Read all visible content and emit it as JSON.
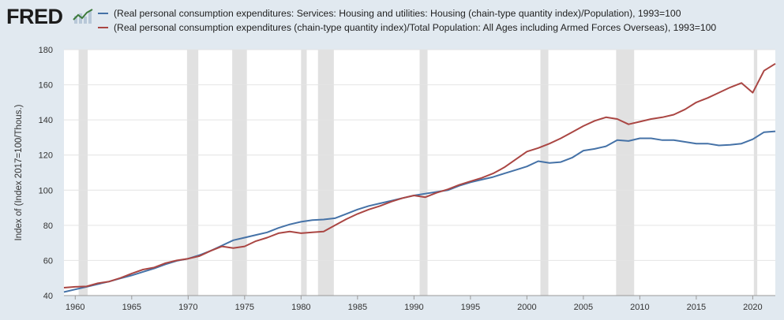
{
  "header": {
    "logo_text": "FRED",
    "logo_icon": "fred-chart-icon"
  },
  "colors": {
    "background": "#e1e9f0",
    "plot_background": "#ffffff",
    "recession": "#e1e1e1",
    "series1": "#4572a7",
    "series2": "#aa4643",
    "grid": "#e4e4e4"
  },
  "chart_data": {
    "type": "line",
    "ylabel": "Index of (Index 2017=100/Thous.)",
    "xlim": [
      1959,
      2022
    ],
    "ylim": [
      40,
      180
    ],
    "x_ticks": [
      "1960",
      "1965",
      "1970",
      "1975",
      "1980",
      "1985",
      "1990",
      "1995",
      "2000",
      "2005",
      "2010",
      "2015",
      "2020"
    ],
    "y_ticks": [
      "40",
      "60",
      "80",
      "100",
      "120",
      "140",
      "160",
      "180"
    ],
    "grid": true,
    "legend_position": "top",
    "recessions": [
      [
        1960.3,
        1961.1
      ],
      [
        1969.9,
        1970.9
      ],
      [
        1973.9,
        1975.2
      ],
      [
        1980.0,
        1980.5
      ],
      [
        1981.5,
        1982.9
      ],
      [
        1990.5,
        1991.2
      ],
      [
        2001.2,
        2001.9
      ],
      [
        2007.9,
        2009.5
      ],
      [
        2020.1,
        2020.4
      ]
    ],
    "series": [
      {
        "name": "(Real personal consumption expenditures: Services: Housing and utilities: Housing (chain-type quantity index)/Population), 1993=100",
        "color": "#4572a7",
        "x": [
          1959,
          1960,
          1961,
          1962,
          1963,
          1964,
          1965,
          1966,
          1967,
          1968,
          1969,
          1970,
          1971,
          1972,
          1973,
          1974,
          1975,
          1976,
          1977,
          1978,
          1979,
          1980,
          1981,
          1982,
          1983,
          1984,
          1985,
          1986,
          1987,
          1988,
          1989,
          1990,
          1991,
          1992,
          1993,
          1994,
          1995,
          1996,
          1997,
          1998,
          1999,
          2000,
          2001,
          2002,
          2003,
          2004,
          2005,
          2006,
          2007,
          2008,
          2009,
          2010,
          2011,
          2012,
          2013,
          2014,
          2015,
          2016,
          2017,
          2018,
          2019,
          2020,
          2021,
          2022
        ],
        "y": [
          42,
          43.5,
          45,
          46.5,
          48,
          49.8,
          51.5,
          53.5,
          55.5,
          57.8,
          59.8,
          61,
          63,
          65.5,
          68.5,
          71.5,
          73,
          74.5,
          76,
          78.5,
          80.5,
          82,
          83,
          83.3,
          84,
          86.5,
          89,
          91,
          92.5,
          94,
          95.5,
          97,
          98,
          99,
          100,
          102.5,
          104.5,
          106,
          107.5,
          109.5,
          111.5,
          113.5,
          116.5,
          115.5,
          116,
          118.5,
          122.5,
          123.5,
          125,
          128.5,
          128,
          129.5,
          129.5,
          128.5,
          128.5,
          127.5,
          126.5,
          126.5,
          125.5,
          125.8,
          126.5,
          129,
          133,
          133.5
        ]
      },
      {
        "name": "(Real personal consumption expenditures (chain-type quantity index)/Total Population: All Ages including Armed Forces Overseas), 1993=100",
        "color": "#aa4643",
        "x": [
          1959,
          1960,
          1961,
          1962,
          1963,
          1964,
          1965,
          1966,
          1967,
          1968,
          1969,
          1970,
          1971,
          1972,
          1973,
          1974,
          1975,
          1976,
          1977,
          1978,
          1979,
          1980,
          1981,
          1982,
          1983,
          1984,
          1985,
          1986,
          1987,
          1988,
          1989,
          1990,
          1991,
          1992,
          1993,
          1994,
          1995,
          1996,
          1997,
          1998,
          1999,
          2000,
          2001,
          2002,
          2003,
          2004,
          2005,
          2006,
          2007,
          2008,
          2009,
          2010,
          2011,
          2012,
          2013,
          2014,
          2015,
          2016,
          2017,
          2018,
          2019,
          2020,
          2021,
          2022
        ],
        "y": [
          44.5,
          45,
          45.2,
          47,
          48,
          50,
          52.5,
          54.8,
          56,
          58.5,
          60,
          61,
          62.5,
          65.5,
          68,
          67,
          68,
          71,
          73,
          75.5,
          76.5,
          75.5,
          76,
          76.5,
          80,
          83.5,
          86.5,
          89,
          91,
          93.5,
          95.5,
          97,
          96,
          98.5,
          100.5,
          103,
          105,
          107,
          109.5,
          113,
          117.5,
          122,
          124,
          126.5,
          129.5,
          133,
          136.5,
          139.5,
          141.5,
          140.5,
          137.5,
          139,
          140.5,
          141.5,
          143,
          146,
          150,
          152.5,
          155.5,
          158.5,
          161,
          155.5,
          168,
          172
        ]
      }
    ]
  }
}
